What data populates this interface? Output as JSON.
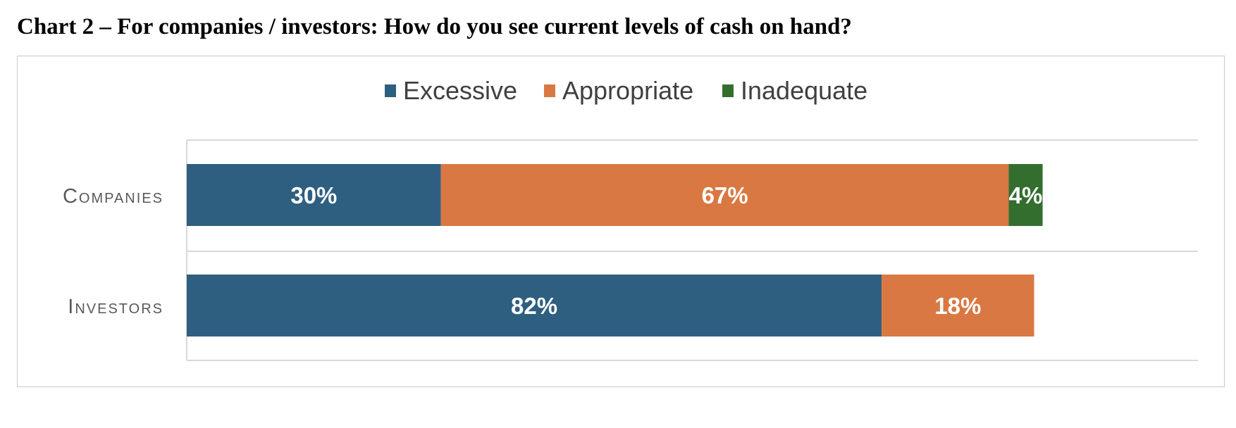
{
  "title": "Chart 2 – For companies / investors: How do you see current levels of cash on hand?",
  "chart_data": {
    "type": "bar",
    "orientation": "horizontal",
    "stacked": true,
    "title": "",
    "xlabel": "",
    "ylabel": "",
    "xlim": [
      0,
      100
    ],
    "grid": true,
    "legend_position": "top",
    "categories": [
      "Companies",
      "Investors"
    ],
    "series": [
      {
        "name": "Excessive",
        "color": "#2e5f80",
        "values": [
          30,
          82
        ],
        "labels": [
          "30%",
          "82%"
        ]
      },
      {
        "name": "Appropriate",
        "color": "#d97842",
        "values": [
          67,
          18
        ],
        "labels": [
          "67%",
          "18%"
        ]
      },
      {
        "name": "Inadequate",
        "color": "#336e2f",
        "values": [
          4,
          0
        ],
        "labels": [
          "4%",
          ""
        ]
      }
    ]
  }
}
